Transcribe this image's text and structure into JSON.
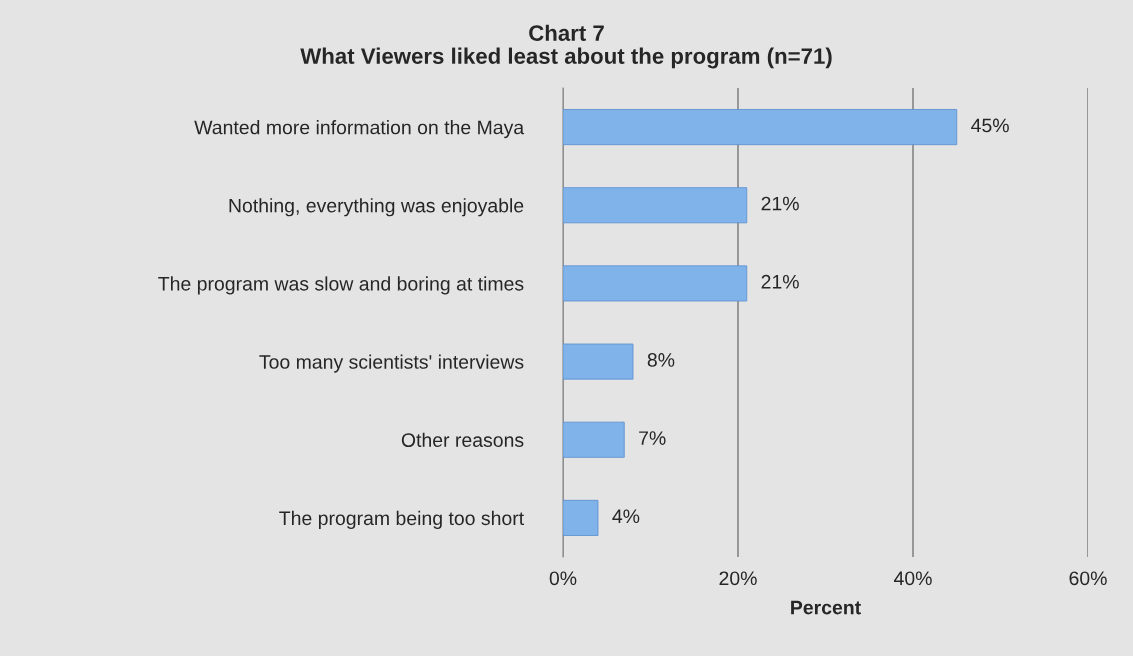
{
  "chart_data": {
    "type": "bar",
    "orientation": "horizontal",
    "title": "Chart 7",
    "subtitle": "What Viewers liked least about the program (n=71)",
    "xlabel": "Percent",
    "categories": [
      "Wanted more information on the Maya",
      "Nothing, everything was enjoyable",
      "The program was slow and boring at times",
      "Too many scientists' interviews",
      "Other reasons",
      "The program being too short"
    ],
    "values": [
      45,
      21,
      21,
      8,
      7,
      4
    ],
    "value_labels": [
      "45%",
      "21%",
      "21%",
      "8%",
      "7%",
      "4%"
    ],
    "color": "#7fb3ea",
    "xlim": [
      0,
      60
    ],
    "xticks": [
      {
        "value": 0,
        "label": "0%"
      },
      {
        "value": 20,
        "label": "20%"
      },
      {
        "value": 40,
        "label": "40%"
      },
      {
        "value": 60,
        "label": "60%"
      }
    ],
    "grid": "x",
    "legend": false
  }
}
